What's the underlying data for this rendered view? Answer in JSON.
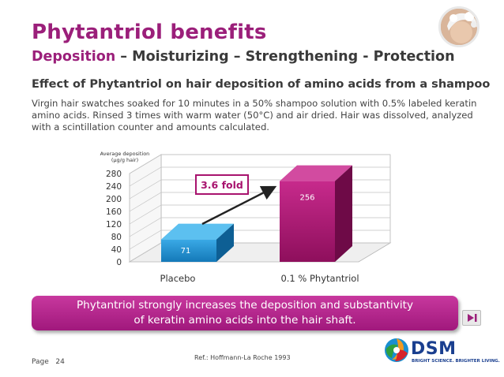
{
  "header": {
    "title": "Phytantriol benefits",
    "subtitle_accent": "Deposition",
    "subtitle_rest": " – Moisturizing – Strengthening - Protection"
  },
  "section": {
    "heading": "Effect of Phytantriol on hair deposition of amino acids from a shampoo",
    "description": "Virgin hair swatches soaked for 10 minutes in a 50% shampoo solution with 0.5% labeled keratin amino acids. Rinsed 3 times with warm water (50°C) and air dried. Hair was dissolved, analyzed with a scintillation counter and amounts calculated."
  },
  "chart_data": {
    "type": "bar",
    "title": "",
    "ylabel": "Average deposition (µg/g hair)",
    "ylabel_line1": "Average deposition",
    "ylabel_line2": "(µg/g hair)",
    "xlabel": "",
    "categories": [
      "Placebo",
      "0.1 % Phytantriol"
    ],
    "values": [
      71,
      256
    ],
    "ylim": [
      0,
      280
    ],
    "yticks": [
      0,
      40,
      80,
      120,
      160,
      200,
      240,
      280
    ],
    "grid": true,
    "annotation": "3.6 fold",
    "colors": [
      "#1f8fd0",
      "#a8136e"
    ]
  },
  "banner": {
    "line1": "Phytantriol strongly increases the deposition and substantivity",
    "line2": "of keratin amino acids into the hair shaft."
  },
  "footer": {
    "page_label": "Page",
    "page_number": "24",
    "reference": "Ref.: Hoffmann-La Roche 1993",
    "logo_text": "DSM",
    "logo_tagline": "BRIGHT SCIENCE. BRIGHTER LIVING."
  },
  "colors": {
    "brand": "#9b1f7a",
    "dsm_blue": "#1a3f8f"
  }
}
